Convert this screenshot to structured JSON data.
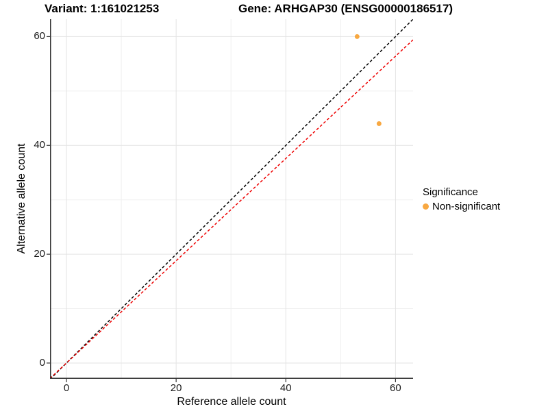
{
  "header": {
    "variant_title": "Variant: 1:161021253",
    "gene_title": "Gene: ARHGAP30 (ENSG00000186517)"
  },
  "chart_data": {
    "type": "scatter",
    "xlabel": "Reference allele count",
    "ylabel": "Alternative allele count",
    "xlim": [
      -3,
      63.2
    ],
    "ylim": [
      -2.9,
      63.2
    ],
    "x_ticks": [
      0,
      20,
      40,
      60
    ],
    "y_ticks": [
      0,
      20,
      40,
      60
    ],
    "x_minor_ticks": [
      10,
      30,
      50
    ],
    "y_minor_ticks": [
      10,
      30,
      50
    ],
    "grid": "on",
    "points": [
      {
        "x": 53,
        "y": 60,
        "series": "Non-significant"
      },
      {
        "x": 57,
        "y": 44,
        "series": "Non-significant"
      }
    ],
    "lines": [
      {
        "name": "identity-line",
        "slope": 1,
        "intercept": 0,
        "color": "#000000",
        "style": "dashed"
      },
      {
        "name": "expected-ratio-line",
        "slope": 0.94,
        "intercept": 0,
        "color": "#ee0000",
        "style": "dashed"
      }
    ],
    "legend": {
      "title": "Significance",
      "position": "right",
      "items": [
        {
          "label": "Non-significant",
          "color": "#F8A841"
        }
      ]
    },
    "colors": {
      "point": "#F8A841",
      "grid_major": "#e3e3e3",
      "grid_minor": "#f0f0f0",
      "axis_line": "#333333",
      "tick_text": "#1a1a1a"
    }
  }
}
